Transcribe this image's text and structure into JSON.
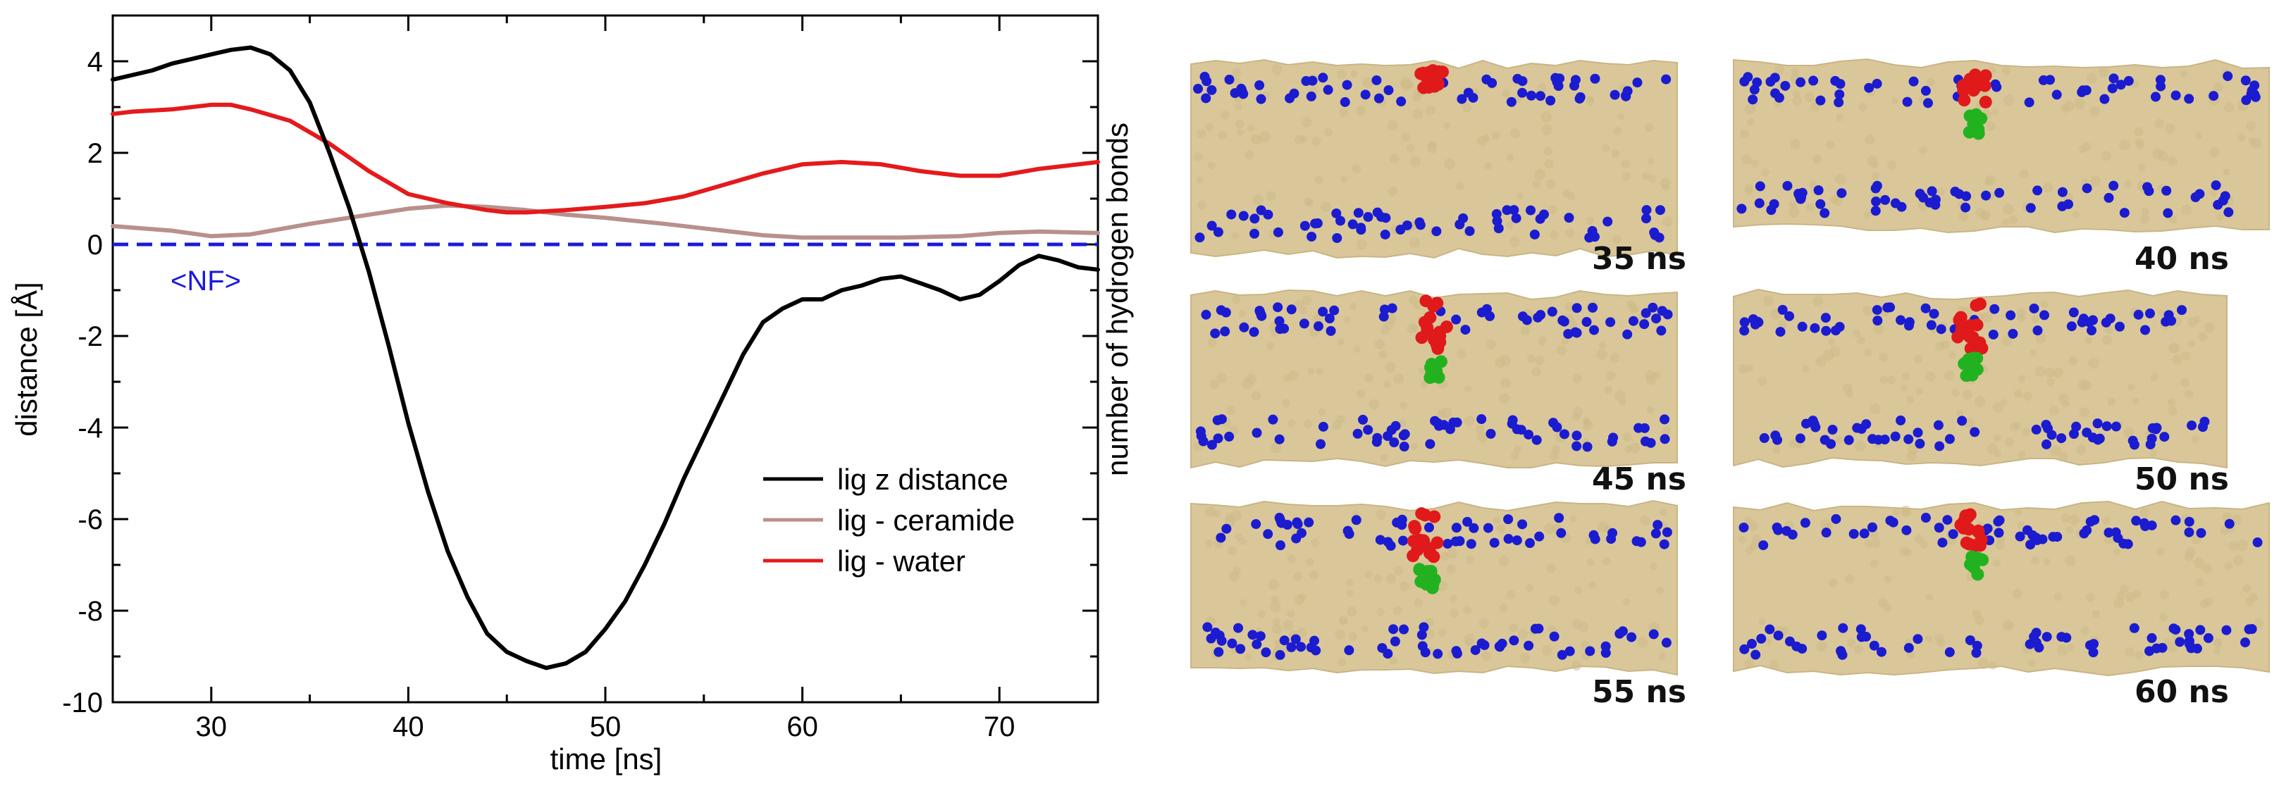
{
  "chart_data": {
    "type": "line",
    "xlabel": "time [ns]",
    "ylabel": "distance [Å]",
    "xlim": [
      25,
      75
    ],
    "ylim": [
      -10,
      5
    ],
    "xticks": [
      30,
      40,
      50,
      60,
      70
    ],
    "yticks": [
      4,
      2,
      0,
      -2,
      -4,
      -6,
      -8,
      -10
    ],
    "legend_position": "bottom-right",
    "reference_line": {
      "y": 0,
      "label": "<NF>",
      "color": "#1a1adb",
      "style": "dashed"
    },
    "series": [
      {
        "name": "lig z distance",
        "color": "#000000",
        "x": [
          25,
          26,
          27,
          28,
          29,
          30,
          31,
          32,
          33,
          34,
          35,
          36,
          37,
          38,
          39,
          40,
          41,
          42,
          43,
          44,
          45,
          46,
          47,
          48,
          49,
          50,
          51,
          52,
          53,
          54,
          55,
          56,
          57,
          58,
          59,
          60,
          61,
          62,
          63,
          64,
          65,
          66,
          67,
          68,
          69,
          70,
          71,
          72,
          73,
          74,
          75
        ],
        "y": [
          3.6,
          3.7,
          3.8,
          3.95,
          4.05,
          4.15,
          4.25,
          4.3,
          4.15,
          3.8,
          3.1,
          2.0,
          0.8,
          -0.6,
          -2.2,
          -3.9,
          -5.4,
          -6.7,
          -7.7,
          -8.5,
          -8.9,
          -9.1,
          -9.25,
          -9.15,
          -8.9,
          -8.4,
          -7.8,
          -7.0,
          -6.1,
          -5.1,
          -4.2,
          -3.3,
          -2.4,
          -1.7,
          -1.4,
          -1.2,
          -1.2,
          -1.0,
          -0.9,
          -0.75,
          -0.7,
          -0.85,
          -1.0,
          -1.2,
          -1.1,
          -0.8,
          -0.45,
          -0.25,
          -0.35,
          -0.5,
          -0.55
        ]
      },
      {
        "name": "lig - ceramide",
        "color": "#b8908c",
        "x": [
          25,
          28,
          30,
          32,
          35,
          38,
          40,
          42,
          44,
          46,
          48,
          50,
          53,
          56,
          58,
          60,
          62,
          65,
          68,
          70,
          72,
          75
        ],
        "y": [
          0.4,
          0.3,
          0.18,
          0.22,
          0.45,
          0.65,
          0.78,
          0.85,
          0.82,
          0.75,
          0.65,
          0.58,
          0.45,
          0.3,
          0.2,
          0.15,
          0.15,
          0.15,
          0.18,
          0.25,
          0.28,
          0.25
        ]
      },
      {
        "name": "lig - water",
        "color": "#e41a1c",
        "x": [
          25,
          26,
          28,
          30,
          31,
          32,
          34,
          36,
          38,
          40,
          42,
          44,
          45,
          46,
          48,
          50,
          52,
          54,
          56,
          58,
          60,
          62,
          64,
          66,
          68,
          70,
          72,
          74,
          75
        ],
        "y": [
          2.85,
          2.9,
          2.95,
          3.05,
          3.05,
          2.95,
          2.7,
          2.2,
          1.6,
          1.1,
          0.9,
          0.75,
          0.7,
          0.7,
          0.75,
          0.82,
          0.9,
          1.05,
          1.3,
          1.55,
          1.75,
          1.8,
          1.75,
          1.6,
          1.5,
          1.5,
          1.65,
          1.75,
          1.8
        ]
      }
    ]
  },
  "snapshots": {
    "ylabel": "number of hydrogen bonds",
    "frames": [
      "35 ns",
      "40 ns",
      "45 ns",
      "50 ns",
      "55 ns",
      "60 ns"
    ],
    "colors": {
      "lipid": "#d9c79a",
      "headgroup": "#1b1bd0",
      "ligand_head": "#e0191b",
      "ligand_tail": "#23b21f"
    }
  }
}
